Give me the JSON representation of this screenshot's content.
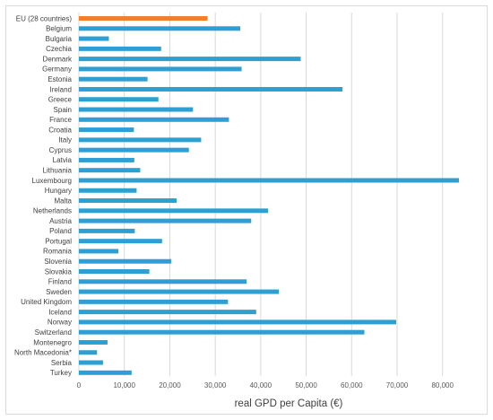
{
  "chart_data": {
    "type": "bar",
    "orientation": "horizontal",
    "xlabel": "real GPD per Capita (€)",
    "ylabel": "",
    "title": "",
    "xlim": [
      0,
      84000
    ],
    "xticks": [
      0,
      10000,
      20000,
      30000,
      40000,
      50000,
      60000,
      70000,
      80000
    ],
    "xtick_labels": [
      "0",
      "10,000",
      "20,000",
      "30,000",
      "40,000",
      "50,000",
      "60,000",
      "70,000",
      "80,000"
    ],
    "grid": "vertical",
    "legend": "none",
    "colors": {
      "default": "#2e9fd3",
      "highlight": "#f07f30"
    },
    "highlight_category": "EU (28 countries)",
    "categories": [
      "EU (28 countries)",
      "Belgium",
      "Bulgaria",
      "Czechia",
      "Denmark",
      "Germany",
      "Estonia",
      "Ireland",
      "Greece",
      "Spain",
      "France",
      "Croatia",
      "Italy",
      "Cyprus",
      "Latvia",
      "Lithuania",
      "Luxembourg",
      "Hungary",
      "Malta",
      "Netherlands",
      "Austria",
      "Poland",
      "Portugal",
      "Romania",
      "Slovenia",
      "Slovakia",
      "Finland",
      "Sweden",
      "United Kingdom",
      "Iceland",
      "Norway",
      "Switzerland",
      "Montenegro",
      "North Macedonia*",
      "Serbia",
      "Turkey"
    ],
    "values": [
      28300,
      35500,
      6600,
      18100,
      48800,
      35800,
      15100,
      58000,
      17500,
      25100,
      33000,
      12100,
      26900,
      24200,
      12200,
      13500,
      83600,
      12700,
      21500,
      41600,
      37900,
      12300,
      18300,
      8700,
      20300,
      15500,
      36900,
      44000,
      32800,
      39000,
      69800,
      62800,
      6300,
      4000,
      5300,
      11600
    ]
  }
}
